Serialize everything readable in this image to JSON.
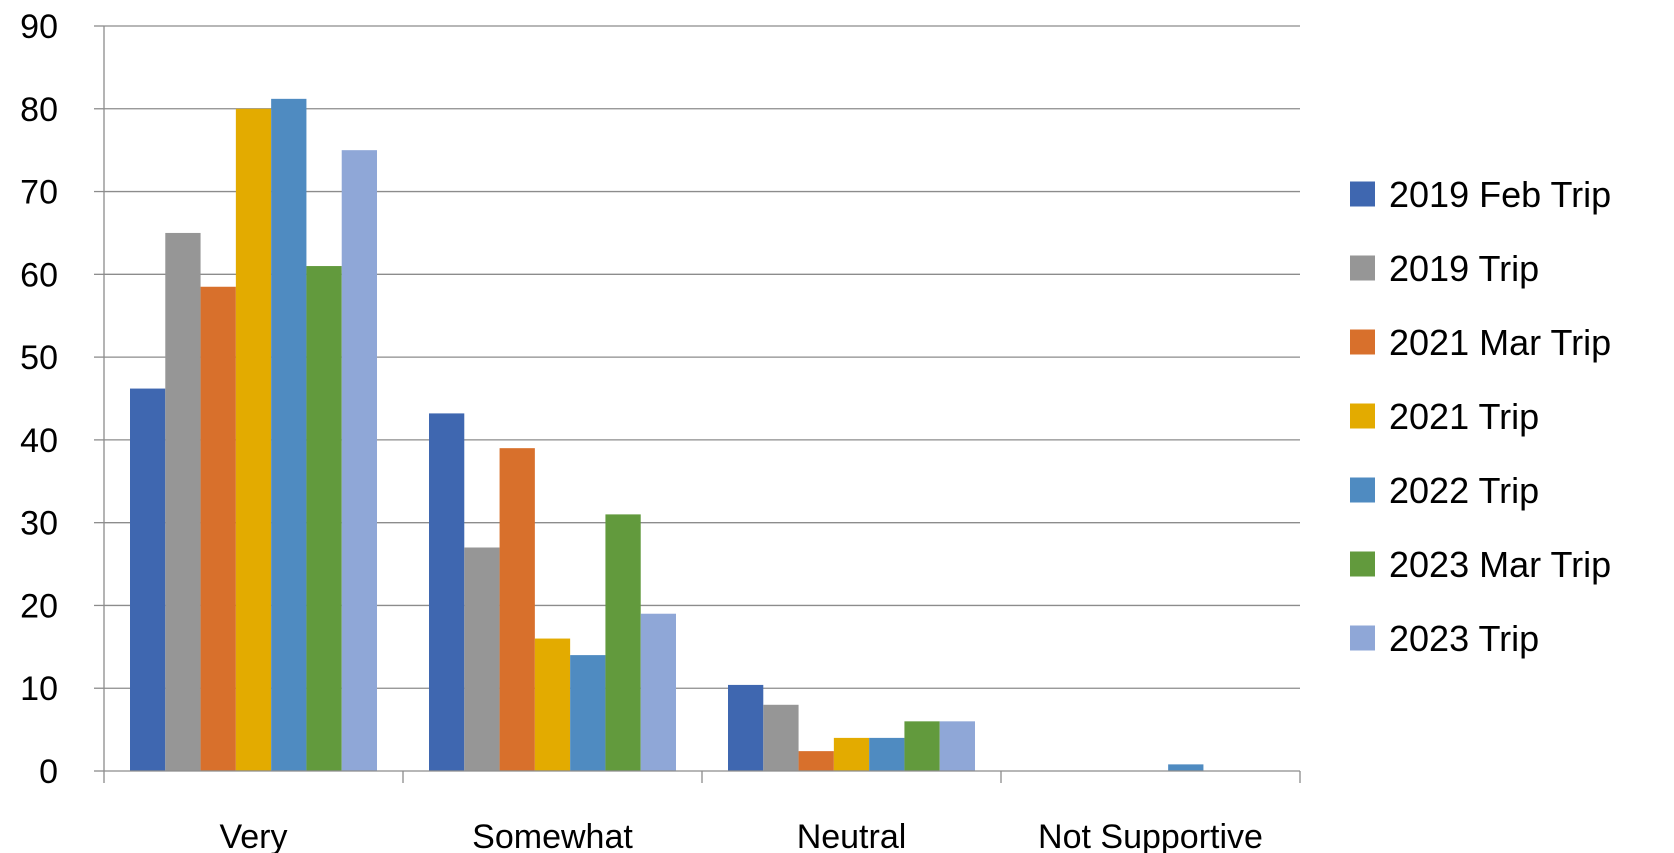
{
  "chart_data": {
    "type": "bar",
    "title": "",
    "xlabel": "",
    "ylabel": "",
    "ylim": [
      0,
      90
    ],
    "yticks": [
      0,
      10,
      20,
      30,
      40,
      50,
      60,
      70,
      80,
      90
    ],
    "grid": true,
    "legend_position": "right",
    "categories": [
      "Very",
      "Somewhat",
      "Neutral",
      "Not Supportive"
    ],
    "series": [
      {
        "name": "2019 Feb Trip",
        "color": "#3F67B0",
        "values": [
          46.2,
          43.2,
          10.4,
          0
        ]
      },
      {
        "name": "2019 Trip",
        "color": "#969696",
        "values": [
          65,
          27,
          8,
          0
        ]
      },
      {
        "name": "2021 Mar Trip",
        "color": "#D8702C",
        "values": [
          58.5,
          39,
          2.4,
          0
        ]
      },
      {
        "name": "2021 Trip",
        "color": "#E3AB00",
        "values": [
          80,
          16,
          4,
          0
        ]
      },
      {
        "name": "2022 Trip",
        "color": "#4F8BC1",
        "values": [
          81.2,
          14,
          4,
          0.8
        ]
      },
      {
        "name": "2023 Mar Trip",
        "color": "#629A3D",
        "values": [
          61,
          31,
          6,
          0
        ]
      },
      {
        "name": "2023 Trip",
        "color": "#8FA7D7",
        "values": [
          75,
          19,
          6,
          0
        ]
      }
    ]
  }
}
